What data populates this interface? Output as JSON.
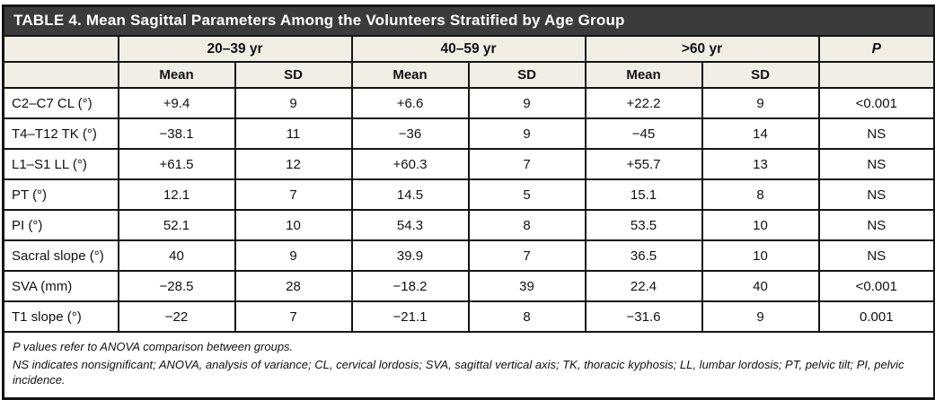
{
  "table": {
    "title": "TABLE 4. Mean Sagittal Parameters Among the Volunteers Stratified by Age Group",
    "group_headers": [
      "20–39 yr",
      "40–59 yr",
      ">60 yr"
    ],
    "p_header": "P",
    "mean_label": "Mean",
    "sd_label": "SD",
    "rows": [
      {
        "label": "C2–C7 CL (°)",
        "values": [
          "+9.4",
          "9",
          "+6.6",
          "9",
          "+22.2",
          "9",
          "<0.001"
        ]
      },
      {
        "label": "T4–T12 TK (°)",
        "values": [
          "−38.1",
          "11",
          "−36",
          "9",
          "−45",
          "14",
          "NS"
        ]
      },
      {
        "label": "L1–S1 LL (°)",
        "values": [
          "+61.5",
          "12",
          "+60.3",
          "7",
          "+55.7",
          "13",
          "NS"
        ]
      },
      {
        "label": "PT (°)",
        "values": [
          "12.1",
          "7",
          "14.5",
          "5",
          "15.1",
          "8",
          "NS"
        ]
      },
      {
        "label": "PI (°)",
        "values": [
          "52.1",
          "10",
          "54.3",
          "8",
          "53.5",
          "10",
          "NS"
        ]
      },
      {
        "label": "Sacral slope (°)",
        "values": [
          "40",
          "9",
          "39.9",
          "7",
          "36.5",
          "10",
          "NS"
        ]
      },
      {
        "label": "SVA (mm)",
        "values": [
          "−28.5",
          "28",
          "−18.2",
          "39",
          "22.4",
          "40",
          "<0.001"
        ]
      },
      {
        "label": "T1 slope (°)",
        "values": [
          "−22",
          "7",
          "−21.1",
          "8",
          "−31.6",
          "9",
          "0.001"
        ]
      }
    ],
    "footnotes": [
      "P values refer to ANOVA comparison between groups.",
      "NS indicates nonsignificant; ANOVA, analysis of variance; CL, cervical lordosis; SVA, sagittal vertical axis; TK, thoracic kyphosis; LL, lumbar lordosis; PT, pelvic tilt; PI, pelvic incidence."
    ]
  },
  "colors": {
    "title_bg": "#3b3b3b",
    "header_bg": "#f1efe5",
    "border": "#141414"
  }
}
